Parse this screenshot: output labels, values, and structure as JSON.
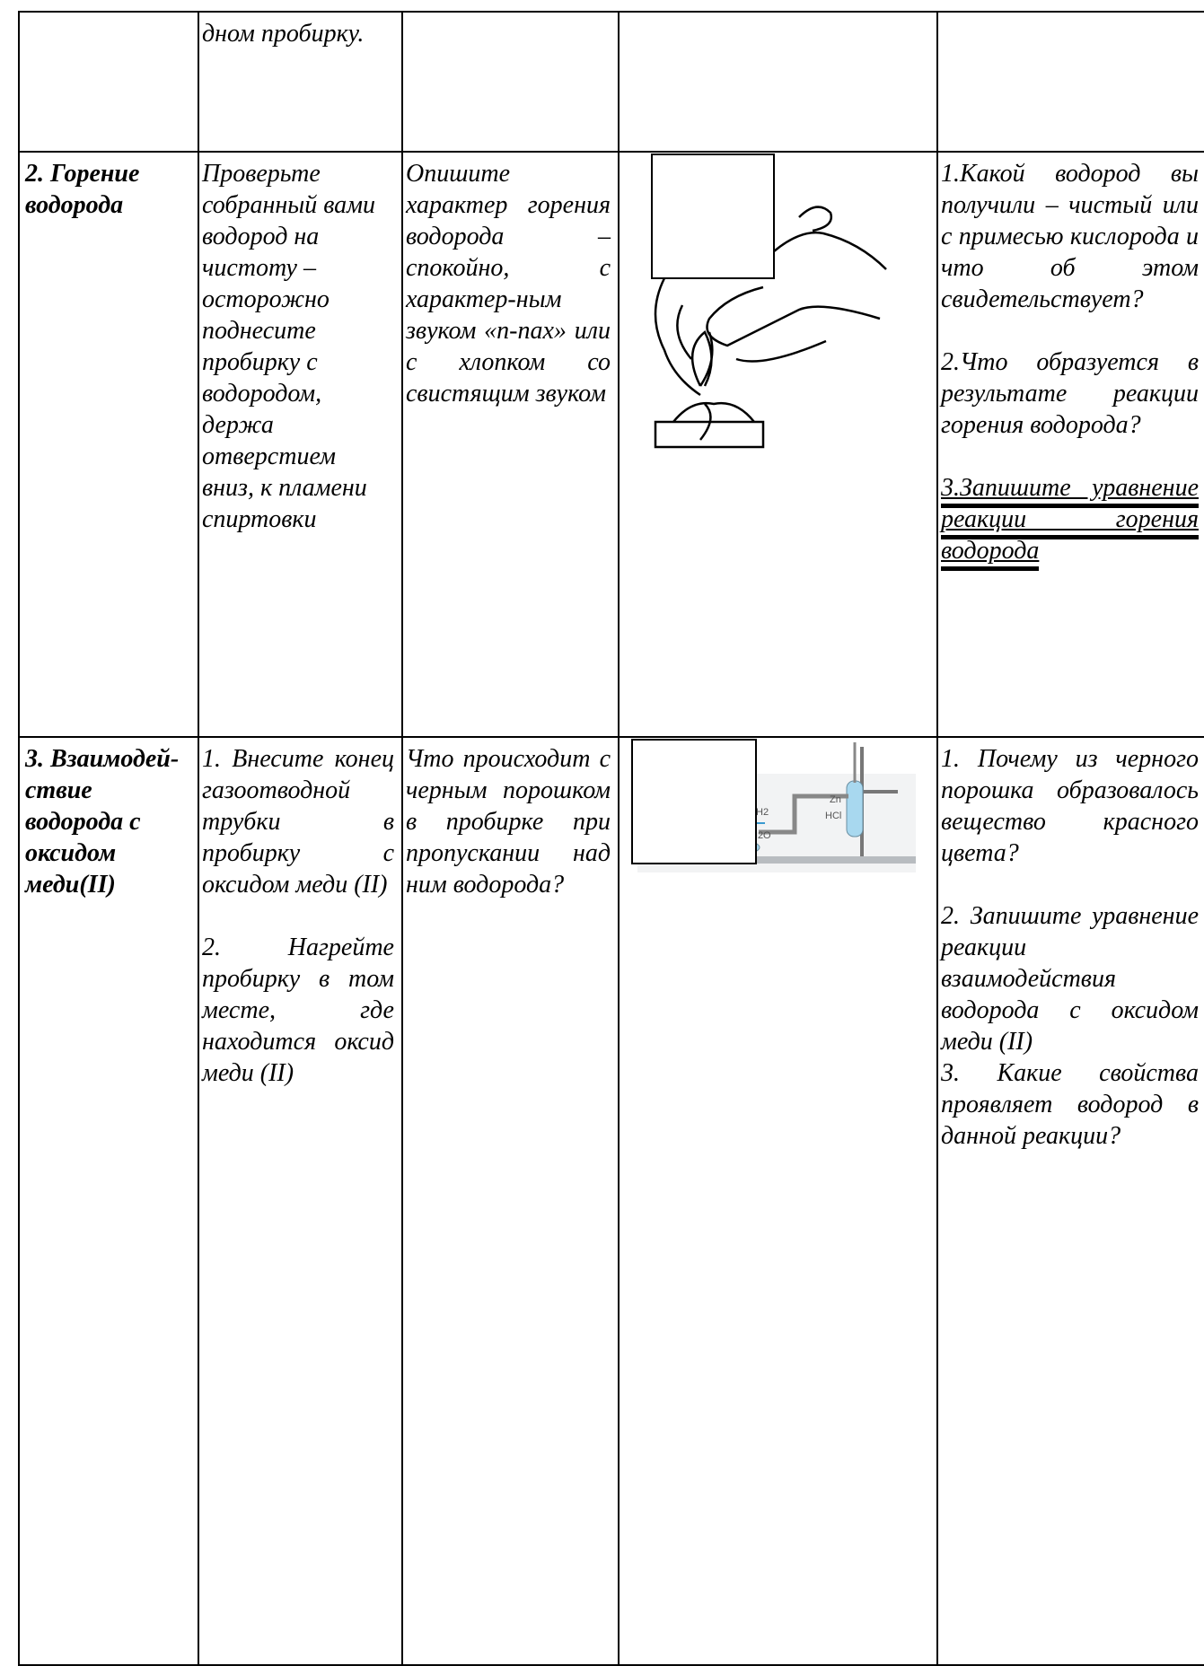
{
  "table": {
    "row_1": {
      "procedure": "дном пробирку."
    },
    "row_2": {
      "name": "2. Горение водорода",
      "procedure": [
        "Проверьте собранный вами водород на чистоту – осторожно поднесите пробирку с водородом, держа отверстием вниз, к пламени спиртовки"
      ],
      "observation": "Опишите характер горения водорода – спокойно, с характер-ным звуком «п-пах» или с хлопком со свистящим звуком",
      "questions": [
        "1.Какой водород вы получили – чистый или с примесью кислорода и что об этом свидетельствует?",
        "2.Что образуется в результате реакции горения водорода?",
        "3.Запишите уравнение реакции горения водорода"
      ]
    },
    "row_3": {
      "name": "3. Взаимодей-ствие водорода с оксидом меди(II)",
      "procedure": [
        "1. Внесите конец газоотводной трубки в пробирку с оксидом меди (II)",
        "2. Нагрейте пробирку в том месте, где находится оксид меди (II)"
      ],
      "observation": "Что происходит с черным порошком в пробирке при пропускании над ним водорода?",
      "figure_labels": [
        "H2",
        "Zn",
        "HCl",
        "H2O"
      ],
      "questions": [
        "1. Почему из черного порошка образовалось вещество красного цвета?",
        "2. Запишите уравнение реакции взаимодействия водорода с оксидом меди (II)",
        "3. Какие свойства проявляет водород в данной реакции?"
      ]
    }
  }
}
